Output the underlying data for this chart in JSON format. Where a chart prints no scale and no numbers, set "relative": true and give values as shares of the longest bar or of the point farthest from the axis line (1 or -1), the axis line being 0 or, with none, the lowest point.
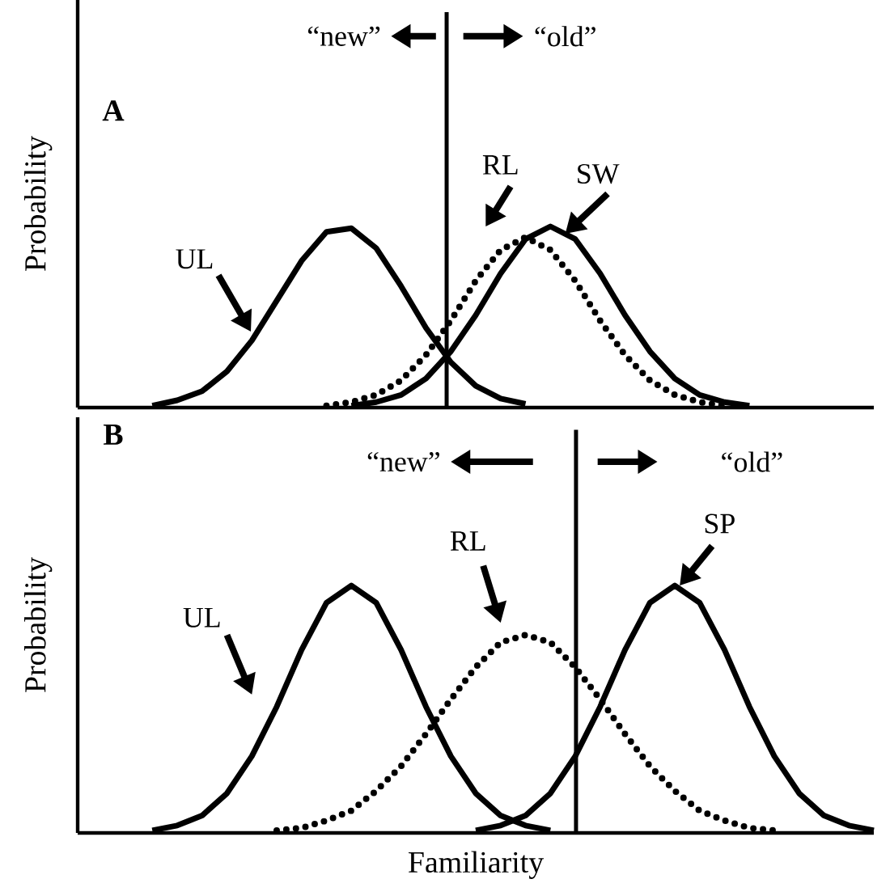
{
  "chart_data": [
    {
      "type": "line",
      "relative": true,
      "ylabel": "Probability",
      "marker": "none",
      "categories": [
        null,
        null,
        null,
        null,
        null,
        null,
        null,
        null,
        null,
        null,
        null,
        null,
        null,
        null,
        null,
        null,
        null,
        null,
        null,
        null,
        null,
        null,
        null,
        null,
        null,
        null,
        null,
        null,
        null,
        null,
        null,
        null,
        null
      ],
      "series": [
        {
          "color": "#000000",
          "line_style": "solid",
          "values": [
            null,
            null,
            null,
            0.01,
            0.04,
            0.09,
            0.2,
            0.37,
            0.59,
            0.81,
            0.97,
            0.99,
            0.88,
            0.67,
            0.44,
            0.25,
            0.12,
            0.05,
            0.02,
            null,
            null,
            null,
            null,
            null,
            null,
            null,
            null,
            null,
            null,
            null,
            null,
            null,
            null
          ]
        },
        {
          "color": "#000000",
          "line_style": "dotted",
          "values": [
            null,
            null,
            null,
            null,
            null,
            null,
            null,
            null,
            null,
            null,
            0.01,
            0.03,
            0.07,
            0.15,
            0.29,
            0.48,
            0.7,
            0.87,
            0.94,
            0.87,
            0.7,
            0.48,
            0.29,
            0.15,
            0.07,
            0.03,
            0.01,
            null,
            null,
            null,
            null,
            null,
            null
          ]
        },
        {
          "color": "#000000",
          "line_style": "solid",
          "values": [
            null,
            null,
            null,
            null,
            null,
            null,
            null,
            null,
            null,
            null,
            null,
            0.01,
            0.03,
            0.07,
            0.16,
            0.31,
            0.51,
            0.74,
            0.93,
            1,
            0.93,
            0.74,
            0.51,
            0.31,
            0.16,
            0.07,
            0.03,
            0.01,
            null,
            null,
            null,
            null,
            null
          ]
        }
      ],
      "annotations": [
        "A",
        "“new”",
        "“old”",
        "UL",
        "RL",
        "SW"
      ]
    },
    {
      "type": "line",
      "relative": true,
      "ylabel": "Probability",
      "xlabel": "Familiarity",
      "marker": "none",
      "categories": [
        null,
        null,
        null,
        null,
        null,
        null,
        null,
        null,
        null,
        null,
        null,
        null,
        null,
        null,
        null,
        null,
        null,
        null,
        null,
        null,
        null,
        null,
        null,
        null,
        null,
        null,
        null,
        null,
        null,
        null,
        null,
        null,
        null
      ],
      "series": [
        {
          "color": "#000000",
          "line_style": "solid",
          "values": [
            null,
            null,
            null,
            0.01,
            0.03,
            0.07,
            0.16,
            0.31,
            0.51,
            0.74,
            0.93,
            1,
            0.93,
            0.74,
            0.51,
            0.31,
            0.16,
            0.07,
            0.03,
            0.01,
            null,
            null,
            null,
            null,
            null,
            null,
            null,
            null,
            null,
            null,
            null,
            null,
            null
          ]
        },
        {
          "color": "#000000",
          "line_style": "dotted",
          "values": [
            null,
            null,
            null,
            null,
            null,
            null,
            null,
            null,
            0.01,
            0.02,
            0.05,
            0.09,
            0.17,
            0.27,
            0.4,
            0.54,
            0.67,
            0.77,
            0.8,
            0.77,
            0.67,
            0.54,
            0.4,
            0.27,
            0.17,
            0.09,
            0.05,
            0.02,
            0.01,
            null,
            null,
            null,
            null
          ]
        },
        {
          "color": "#000000",
          "line_style": "solid",
          "values": [
            null,
            null,
            null,
            null,
            null,
            null,
            null,
            null,
            null,
            null,
            null,
            null,
            null,
            null,
            null,
            null,
            0.01,
            0.03,
            0.07,
            0.16,
            0.31,
            0.51,
            0.74,
            0.93,
            1,
            0.93,
            0.74,
            0.51,
            0.31,
            0.16,
            0.07,
            0.03,
            0.01
          ]
        }
      ],
      "annotations": [
        "B",
        "“new”",
        "“old”",
        "UL",
        "RL",
        "SP"
      ]
    }
  ]
}
